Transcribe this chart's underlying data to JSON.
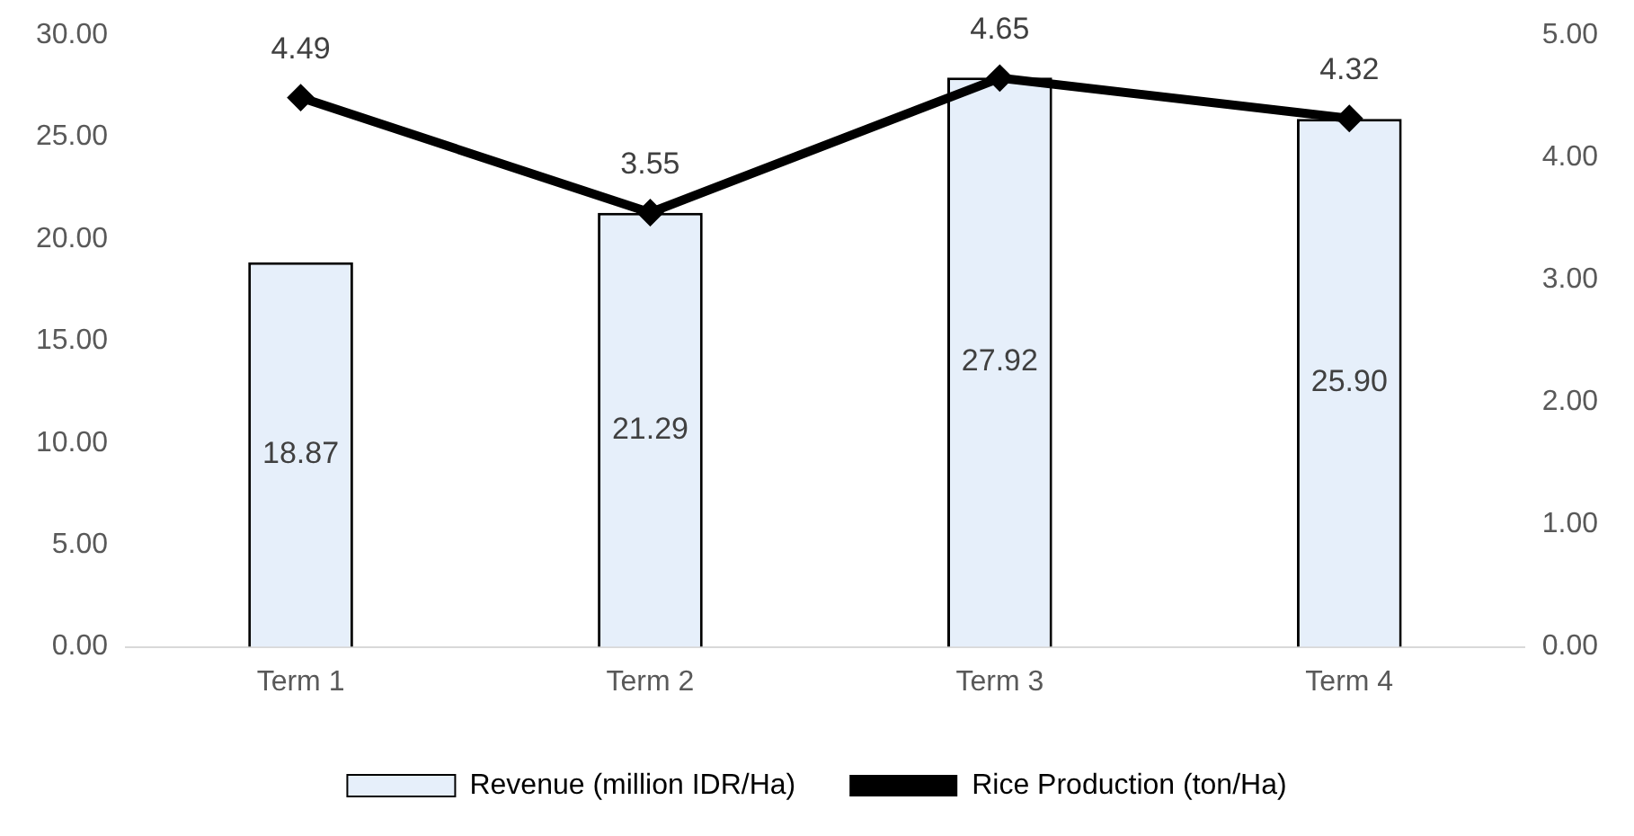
{
  "chart_data": {
    "type": "bar",
    "categories": [
      "Term 1",
      "Term 2",
      "Term 3",
      "Term 4"
    ],
    "series": [
      {
        "name": "Revenue (million IDR/Ha)",
        "color": "#e6effa",
        "values": [
          18.87,
          21.29,
          27.92,
          25.9
        ],
        "value_labels": [
          "18.87",
          "21.29",
          "27.92",
          "25.90"
        ]
      },
      {
        "name": "Rice Production (ton/Ha)",
        "type": "line",
        "axis": "y2",
        "color": "#000000",
        "values": [
          4.49,
          3.55,
          4.65,
          4.32
        ],
        "value_labels": [
          "4.49",
          "3.55",
          "4.65",
          "4.32"
        ],
        "marker": "diamond",
        "line_style": "solid"
      }
    ],
    "ylim": [
      0,
      30
    ],
    "yticks": [
      {
        "value": 0,
        "label": "0.00"
      },
      {
        "value": 5,
        "label": "5.00"
      },
      {
        "value": 10,
        "label": "10.00"
      },
      {
        "value": 15,
        "label": "15.00"
      },
      {
        "value": 20,
        "label": "20.00"
      },
      {
        "value": 25,
        "label": "25.00"
      },
      {
        "value": 30,
        "label": "30.00"
      }
    ],
    "y2lim": [
      0,
      5
    ],
    "y2ticks": [
      {
        "value": 0,
        "label": "0.00"
      },
      {
        "value": 1,
        "label": "1.00"
      },
      {
        "value": 2,
        "label": "2.00"
      },
      {
        "value": 3,
        "label": "3.00"
      },
      {
        "value": 4,
        "label": "4.00"
      },
      {
        "value": 5,
        "label": "5.00"
      }
    ],
    "grid": false,
    "legend": "bottom"
  }
}
